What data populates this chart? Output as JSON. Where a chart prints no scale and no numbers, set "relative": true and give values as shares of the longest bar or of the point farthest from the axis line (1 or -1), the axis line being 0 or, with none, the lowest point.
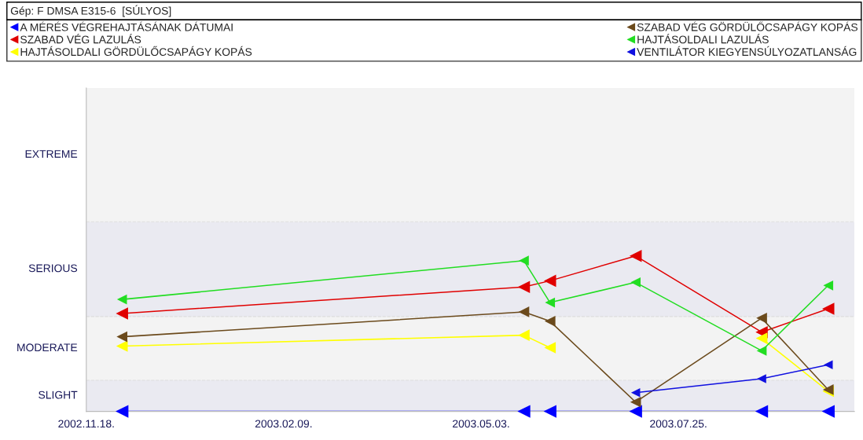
{
  "chart_data": {
    "type": "line",
    "title": "Gép: F DMSA E315-6  [SÚLYOS]",
    "relative": true,
    "x": [
      "2002-12-03",
      "2003-05-21",
      "2003-06-01",
      "2003-07-07",
      "2003-08-29",
      "2003-09-26"
    ],
    "series": [
      {
        "name": "A MÉRÉS VÉGREHAJTÁSÁNAK DÁTUMAI",
        "color": "#0000ff",
        "values": [
          0,
          0,
          0,
          0,
          0,
          0
        ]
      },
      {
        "name": "SZABAD VÉG LAZULÁS",
        "color": "#e00000",
        "values": [
          0.63,
          0.8,
          0.84,
          1,
          0.51,
          0.66
        ]
      },
      {
        "name": "HAJTÁSOLDALI GÖRDÜLŐCSAPÁGY KOPÁS",
        "color": "#ffff00",
        "values": [
          0.42,
          0.49,
          0.41,
          null,
          0.47,
          0.13
        ]
      },
      {
        "name": "SZABAD VÉG GÖRDÜLŐCSAPÁGY KOPÁS",
        "color": "#6b4a1c",
        "values": [
          0.48,
          0.64,
          0.58,
          0.06,
          0.6,
          0.14
        ]
      },
      {
        "name": "HAJTÁSOLDALI LAZULÁS",
        "color": "#22dd22",
        "values": [
          0.72,
          0.97,
          0.7,
          0.83,
          0.39,
          0.81
        ]
      },
      {
        "name": "VENTILÁTOR KIEGYENSÚLYOZATLANSÁG",
        "color": "#1010e0",
        "values": [
          null,
          null,
          null,
          0.12,
          0.21,
          0.3
        ]
      }
    ],
    "xlim": [
      "2002-11-18",
      "2003-10-07"
    ],
    "xticks": [
      {
        "value": "2002-11-18",
        "label": "2002.11.18."
      },
      {
        "value": "2003-02-09",
        "label": "2003.02.09."
      },
      {
        "value": "2003-05-03",
        "label": "2003.05.03."
      },
      {
        "value": "2003-07-25",
        "label": "2003.07.25."
      }
    ],
    "bands": [
      {
        "axis": "y",
        "from": 0,
        "to": 0.2,
        "label": "SLIGHT",
        "color": "#eaeaf1"
      },
      {
        "axis": "y",
        "from": 0.2,
        "to": 0.61,
        "label": "MODERATE",
        "color": "#f3f3f3"
      },
      {
        "axis": "y",
        "from": 0.61,
        "to": 1.22,
        "label": "SERIOUS",
        "color": "#eaeaf1"
      },
      {
        "axis": "y",
        "from": 1.22,
        "to": 2.08,
        "label": "EXTREME",
        "color": "#f3f3f3"
      }
    ],
    "ref_lines": [
      {
        "axis": "y",
        "value": 0.2,
        "color": "#dddddd",
        "line_style": "dashed"
      },
      {
        "axis": "y",
        "value": 0.61,
        "color": "#dddddd",
        "line_style": "dashed"
      },
      {
        "axis": "y",
        "value": 1.22,
        "color": "#dddddd",
        "line_style": "dashed"
      }
    ],
    "marker": "triangle",
    "line_style": "solid",
    "legend": "top"
  }
}
